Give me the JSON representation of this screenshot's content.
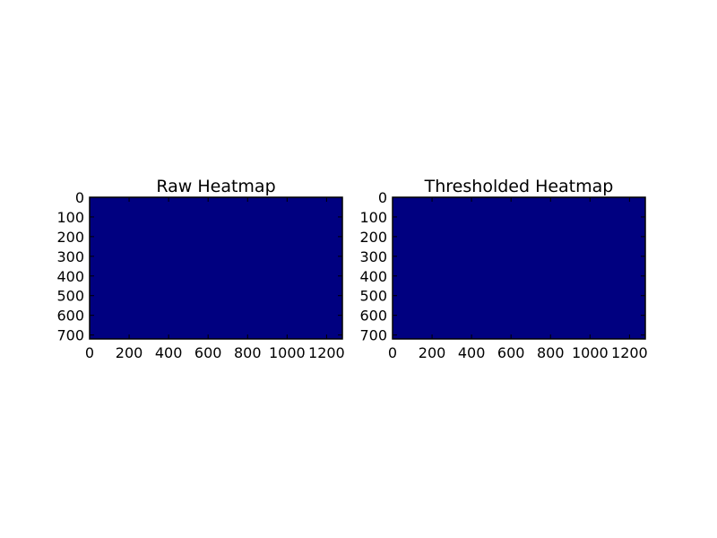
{
  "chart_data": [
    {
      "type": "heatmap",
      "title": "Raw Heatmap",
      "xlabel": "",
      "ylabel": "",
      "xlim": [
        0,
        1280
      ],
      "ylim": [
        720,
        0
      ],
      "x_ticks": [
        0,
        200,
        400,
        600,
        800,
        1000,
        1200
      ],
      "y_ticks": [
        0,
        100,
        200,
        300,
        400,
        500,
        600,
        700
      ],
      "fill_color": "#000080",
      "value": 0,
      "grid": false
    },
    {
      "type": "heatmap",
      "title": "Thresholded Heatmap",
      "xlabel": "",
      "ylabel": "",
      "xlim": [
        0,
        1280
      ],
      "ylim": [
        720,
        0
      ],
      "x_ticks": [
        0,
        200,
        400,
        600,
        800,
        1000,
        1200
      ],
      "y_ticks": [
        0,
        100,
        200,
        300,
        400,
        500,
        600,
        700
      ],
      "fill_color": "#000080",
      "value": 0,
      "grid": false
    }
  ]
}
